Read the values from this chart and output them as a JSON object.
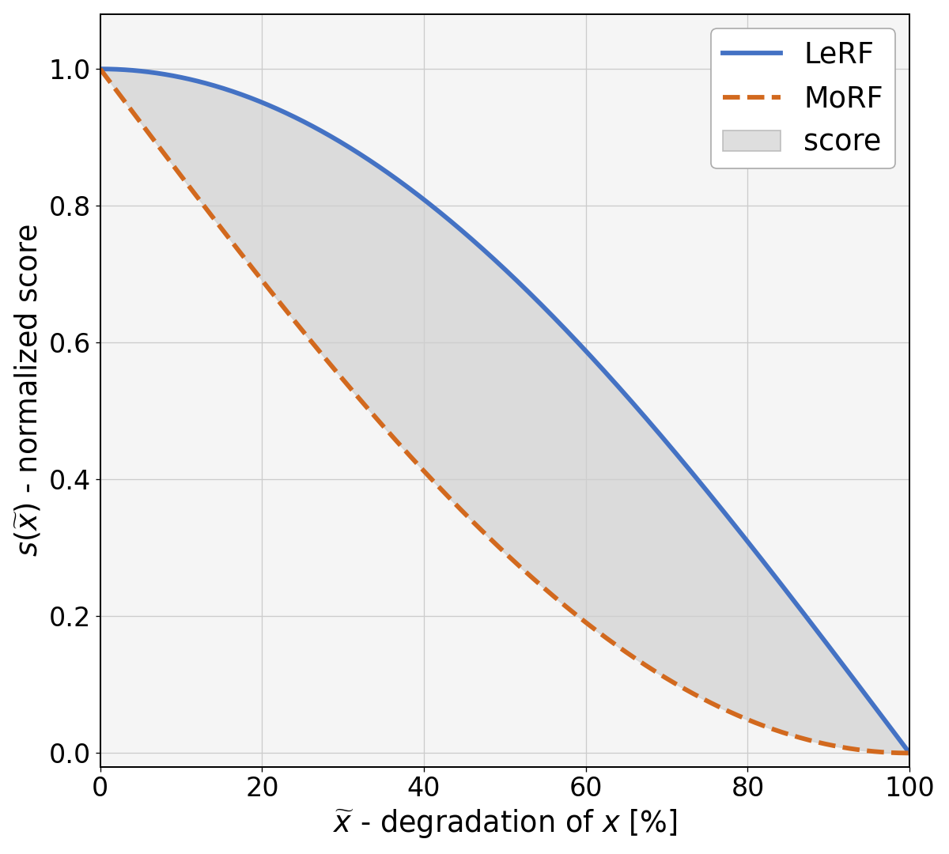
{
  "title": "",
  "xlabel": "$\\widetilde{x}$ - degradation of $x$ [%]",
  "ylabel": "$s(\\widetilde{x})$ - normalized score",
  "xlim": [
    0,
    100
  ],
  "ylim": [
    -0.02,
    1.08
  ],
  "xticks": [
    0,
    20,
    40,
    60,
    80,
    100
  ],
  "yticks": [
    0.0,
    0.2,
    0.4,
    0.6,
    0.8,
    1.0
  ],
  "lerf_power": 0.18,
  "morf_power": 2.5,
  "lerf_color": "#4472c4",
  "morf_color": "#d2691e",
  "fill_color": "#d0d0d0",
  "fill_alpha": 0.7,
  "lerf_linewidth": 3.5,
  "morf_linewidth": 3.5,
  "grid_color": "#cccccc",
  "axes_background": "#f5f5f5",
  "fig_background": "#ffffff",
  "legend_labels": [
    "LeRF",
    "MoRF",
    "score"
  ],
  "figsize": [
    10,
    9
  ],
  "dpi": 120,
  "label_fontsize": 22,
  "tick_fontsize": 20,
  "legend_fontsize": 22
}
